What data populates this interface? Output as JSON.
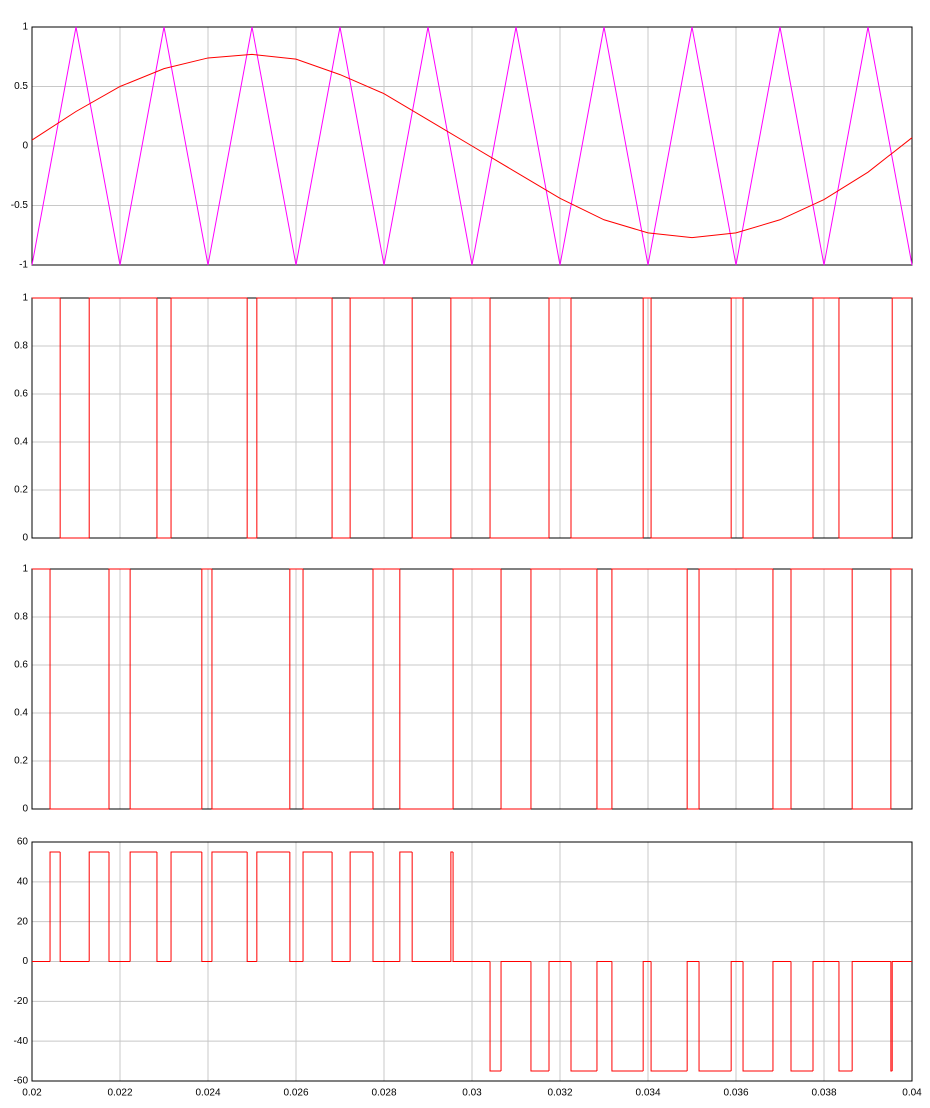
{
  "chart_data": [
    {
      "type": "line",
      "ylim": [
        -1,
        1
      ],
      "yticks": [
        -1,
        -0.5,
        0,
        0.5,
        1
      ],
      "grid": true,
      "series": [
        {
          "color": "#ff00ff",
          "x": [
            0.02,
            0.021,
            0.022,
            0.023,
            0.024,
            0.025,
            0.026,
            0.027,
            0.028,
            0.029,
            0.03,
            0.031,
            0.032,
            0.033,
            0.034,
            0.035,
            0.036,
            0.037,
            0.038,
            0.039,
            0.04
          ],
          "values": [
            -1,
            1,
            -1,
            1,
            -1,
            1,
            -1,
            1,
            -1,
            1,
            -1,
            1,
            -1,
            1,
            -1,
            1,
            -1,
            1,
            -1,
            1,
            -1
          ]
        },
        {
          "color": "#ff0000",
          "x": [
            0.02,
            0.021,
            0.022,
            0.023,
            0.024,
            0.025,
            0.026,
            0.027,
            0.028,
            0.029,
            0.03,
            0.031,
            0.032,
            0.033,
            0.034,
            0.035,
            0.036,
            0.037,
            0.038,
            0.039,
            0.04
          ],
          "values": [
            0.05,
            0.29,
            0.5,
            0.65,
            0.74,
            0.77,
            0.73,
            0.6,
            0.44,
            0.22,
            0.0,
            -0.22,
            -0.44,
            -0.62,
            -0.73,
            -0.77,
            -0.73,
            -0.62,
            -0.45,
            -0.22,
            0.07
          ]
        }
      ]
    },
    {
      "type": "step",
      "ylim": [
        0,
        1
      ],
      "yticks": [
        0,
        0.2,
        0.4,
        0.6,
        0.8,
        1
      ],
      "grid": true,
      "series": [
        {
          "color": "#ff0000",
          "x": [
            0.02,
            0.02064,
            0.0213,
            0.02284,
            0.02316,
            0.02489,
            0.02511,
            0.02682,
            0.02723,
            0.02864,
            0.02952,
            0.03041,
            0.03175,
            0.03225,
            0.03389,
            0.03407,
            0.03589,
            0.03616,
            0.03775,
            0.03834,
            0.03955,
            0.04
          ],
          "values": [
            1,
            0,
            1,
            0,
            1,
            0,
            1,
            0,
            1,
            0,
            1,
            0,
            1,
            0,
            1,
            0,
            1,
            0,
            1,
            0,
            1,
            1
          ]
        }
      ]
    },
    {
      "type": "step",
      "ylim": [
        0,
        1
      ],
      "yticks": [
        0,
        0.2,
        0.4,
        0.6,
        0.8,
        1
      ],
      "grid": true,
      "series": [
        {
          "color": "#ff0000",
          "x": [
            0.02,
            0.02041,
            0.02175,
            0.02223,
            0.02386,
            0.02409,
            0.02586,
            0.02616,
            0.02775,
            0.02836,
            0.02957,
            0.03066,
            0.03134,
            0.03284,
            0.03318,
            0.03489,
            0.03516,
            0.03684,
            0.03725,
            0.03864,
            0.03952,
            0.04
          ],
          "values": [
            1,
            0,
            1,
            0,
            1,
            0,
            1,
            0,
            1,
            0,
            1,
            0,
            1,
            0,
            1,
            0,
            1,
            0,
            1,
            0,
            1,
            1
          ]
        }
      ]
    },
    {
      "type": "step",
      "ylim": [
        -60,
        60
      ],
      "yticks": [
        -60,
        -40,
        -20,
        0,
        20,
        40,
        60
      ],
      "grid": true,
      "xlim": [
        0.02,
        0.04
      ],
      "xticks": [
        0.02,
        0.022,
        0.024,
        0.026,
        0.028,
        0.03,
        0.032,
        0.034,
        0.036,
        0.038,
        0.04
      ],
      "series": [
        {
          "color": "#ff0000",
          "x": [
            0.02,
            0.02041,
            0.02064,
            0.0213,
            0.02175,
            0.02223,
            0.02284,
            0.02316,
            0.02386,
            0.02409,
            0.02489,
            0.02511,
            0.02586,
            0.02616,
            0.02682,
            0.02723,
            0.02775,
            0.02836,
            0.02864,
            0.02952,
            0.02957,
            0.03041,
            0.03066,
            0.03134,
            0.03175,
            0.03225,
            0.03284,
            0.03318,
            0.03389,
            0.03407,
            0.03489,
            0.03516,
            0.03589,
            0.03616,
            0.03684,
            0.03725,
            0.03775,
            0.03834,
            0.03864,
            0.03952,
            0.03955,
            0.04
          ],
          "values": [
            0,
            55,
            0,
            55,
            0,
            55,
            0,
            55,
            0,
            55,
            0,
            55,
            0,
            55,
            0,
            55,
            0,
            55,
            0,
            55,
            0,
            -55,
            0,
            -55,
            0,
            -55,
            0,
            -55,
            0,
            -55,
            0,
            -55,
            0,
            -55,
            0,
            -55,
            0,
            -55,
            0,
            -55,
            0,
            0
          ]
        }
      ]
    }
  ]
}
